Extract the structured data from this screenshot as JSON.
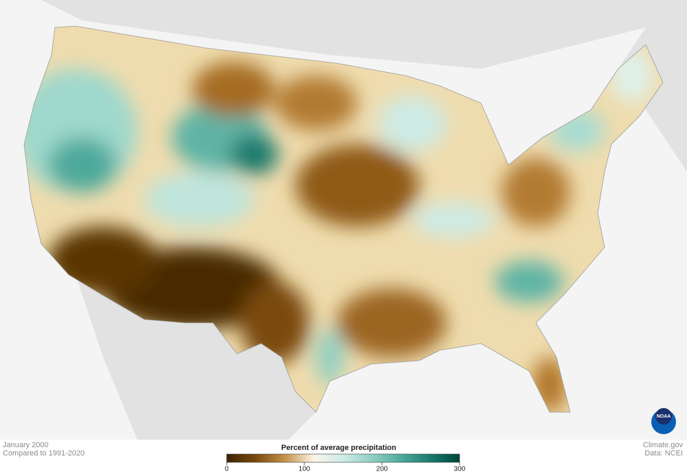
{
  "caption": {
    "date": "January 2000",
    "baseline": "Compared to 1991-2020"
  },
  "legend": {
    "title": "Percent of average precipitation",
    "range": [
      0,
      300
    ],
    "ticks": [
      0,
      100,
      200,
      300
    ],
    "colors": [
      "#3f2300",
      "#7a4a0c",
      "#c4924a",
      "#fbf5e8",
      "#cdebe6",
      "#8fcfc3",
      "#4ea99b",
      "#1a7a6d",
      "#00463b"
    ]
  },
  "credits": {
    "source": "Climate.gov",
    "data": "Data: NCEI"
  },
  "logo": "NOAA"
}
